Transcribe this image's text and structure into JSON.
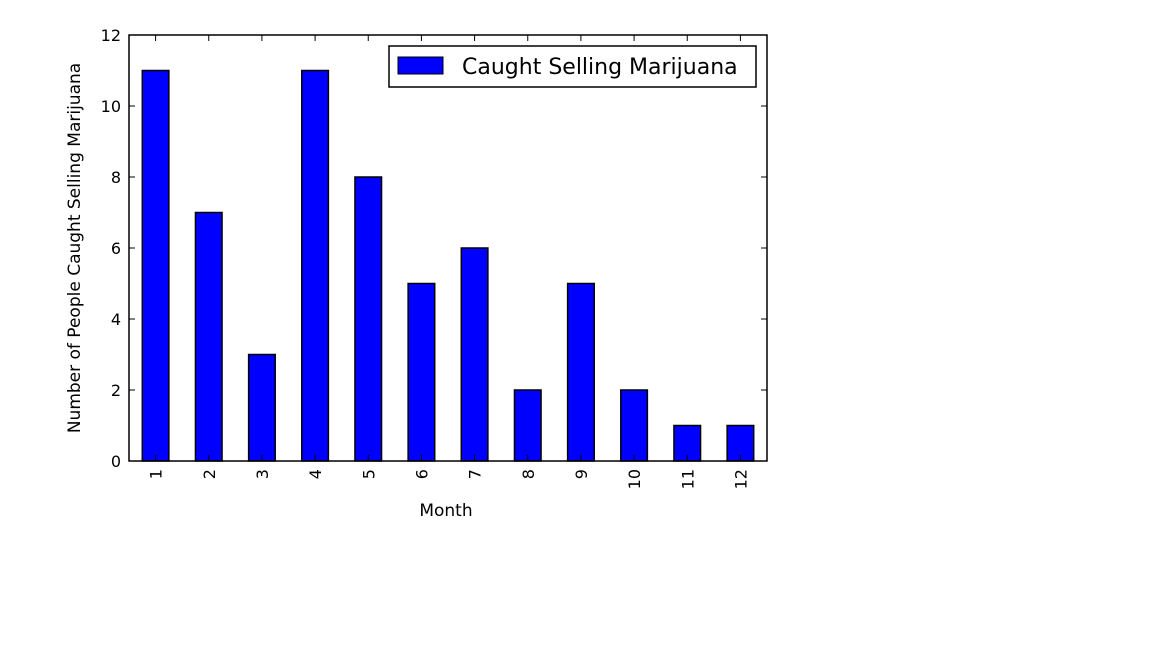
{
  "chart_data": {
    "type": "bar",
    "categories": [
      "1",
      "2",
      "3",
      "4",
      "5",
      "6",
      "7",
      "8",
      "9",
      "10",
      "11",
      "12"
    ],
    "series": [
      {
        "name": "Caught Selling Marijuana",
        "values": [
          11,
          7,
          3,
          11,
          8,
          5,
          6,
          2,
          5,
          2,
          1,
          1
        ],
        "color": "#0000ff"
      }
    ],
    "xlabel": "Month",
    "ylabel": "Number of People Caught Selling Marijuana",
    "ylim": [
      0,
      12
    ],
    "yticks": [
      "0",
      "2",
      "4",
      "6",
      "8",
      "10",
      "12"
    ],
    "legend_position": "top-right",
    "grid": false
  }
}
